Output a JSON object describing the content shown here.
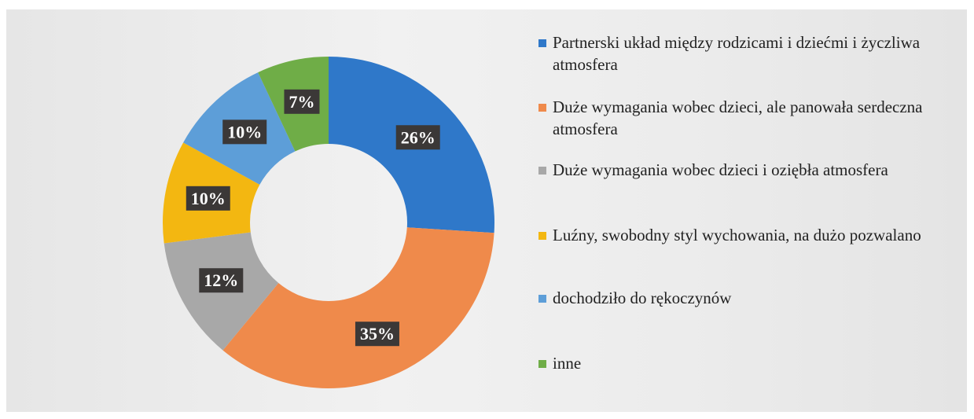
{
  "chart_data": {
    "type": "pie",
    "categories": [
      "Partnerski układ między rodzicami i dziećmi i życzliwa atmosfera",
      "Duże wymagania wobec dzieci, ale panowała serdeczna atmosfera",
      "Duże wymagania wobec dzieci i oziębła atmosfera",
      "Luźny, swobodny styl wychowania, na dużo pozwalano",
      "dochodziło do rękoczynów",
      "inne"
    ],
    "values": [
      26,
      35,
      12,
      10,
      10,
      7
    ],
    "value_labels": [
      "26%",
      "35%",
      "12%",
      "10%",
      "10%",
      "7%"
    ],
    "colors": [
      "#2f78c9",
      "#ef8a4b",
      "#a8a8a8",
      "#f3b711",
      "#5d9ed8",
      "#6fad47"
    ]
  }
}
